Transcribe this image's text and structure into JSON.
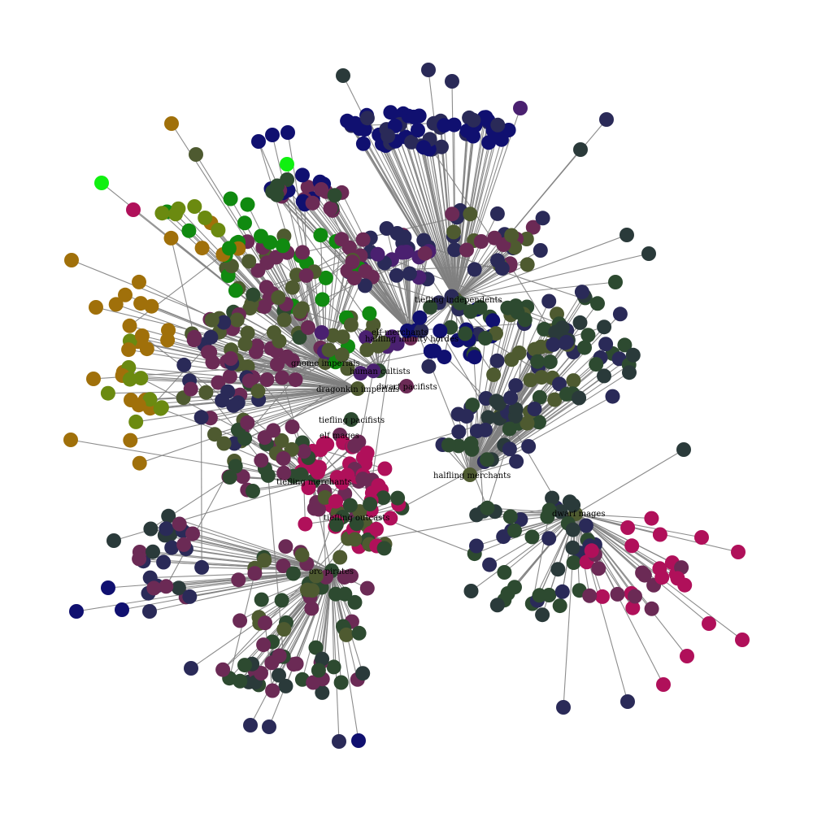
{
  "diagram": {
    "type": "network-graph",
    "edge_color": "#808080",
    "background": "#ffffff",
    "hub_labels": [
      "tiefling independents",
      "elf merchants",
      "halfling infinity hordes",
      "gnome imperials",
      "human cultists",
      "dwarf pacifists",
      "dragonkin imperials",
      "tiefling pacifists",
      "elf mages",
      "halfling merchants",
      "tiefling merchants",
      "tiefling outcasts",
      "dwarf mages",
      "orc pirates"
    ],
    "palette": {
      "navy": "#101070",
      "indigo": "#2a2a58",
      "dark_green": "#2d4a30",
      "olive": "#4e5a30",
      "olive_bright": "#6b8a10",
      "ochre": "#a0700a",
      "plum": "#6b2a55",
      "magenta": "#b0105a",
      "green": "#108a10",
      "lime": "#10f010",
      "slate": "#2a3a3a",
      "purple": "#4a2070"
    }
  }
}
